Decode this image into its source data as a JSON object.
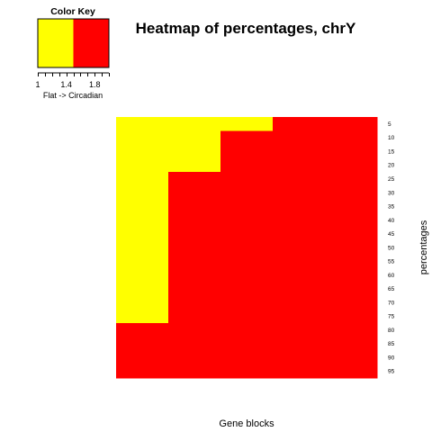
{
  "chart_data": {
    "type": "heatmap",
    "title": "Heatmap of percentages, chrY",
    "xlabel": "Gene blocks",
    "ylabel": "percentages",
    "rows": [
      "5",
      "10",
      "15",
      "20",
      "25",
      "30",
      "35",
      "40",
      "45",
      "50",
      "55",
      "60",
      "65",
      "70",
      "75",
      "80",
      "85",
      "90",
      "95"
    ],
    "n_columns": 5,
    "values": [
      [
        1,
        1,
        1,
        2,
        2
      ],
      [
        1,
        1,
        2,
        2,
        2
      ],
      [
        1,
        1,
        2,
        2,
        2
      ],
      [
        1,
        1,
        2,
        2,
        2
      ],
      [
        1,
        2,
        2,
        2,
        2
      ],
      [
        1,
        2,
        2,
        2,
        2
      ],
      [
        1,
        2,
        2,
        2,
        2
      ],
      [
        1,
        2,
        2,
        2,
        2
      ],
      [
        1,
        2,
        2,
        2,
        2
      ],
      [
        1,
        2,
        2,
        2,
        2
      ],
      [
        1,
        2,
        2,
        2,
        2
      ],
      [
        1,
        2,
        2,
        2,
        2
      ],
      [
        1,
        2,
        2,
        2,
        2
      ],
      [
        1,
        2,
        2,
        2,
        2
      ],
      [
        1,
        2,
        2,
        2,
        2
      ],
      [
        2,
        2,
        2,
        2,
        2
      ],
      [
        2,
        2,
        2,
        2,
        2
      ],
      [
        2,
        2,
        2,
        2,
        2
      ],
      [
        2,
        2,
        2,
        2,
        2
      ]
    ],
    "value_range": [
      1,
      2
    ],
    "color_breaks": [
      1,
      1.5,
      2
    ],
    "colors": [
      "#ffff00",
      "#ff0000"
    ],
    "color_key": {
      "title": "Color Key",
      "ticks": [
        1,
        1.4,
        1.8
      ],
      "tick_labels": [
        "1",
        "1.4",
        "1.8"
      ],
      "label": "Flat -> Circadian"
    },
    "column_boundaries": [
      0,
      0.2,
      0.4,
      0.6,
      0.8,
      1.0
    ]
  }
}
